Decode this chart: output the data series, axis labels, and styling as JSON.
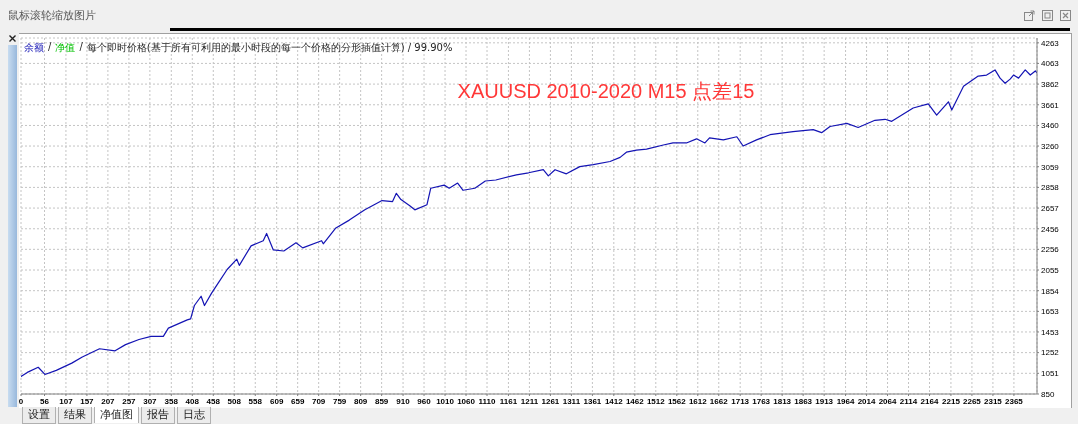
{
  "chart_data": {
    "type": "line",
    "title": "XAUUSD 2010-2020 M15 点差15",
    "annotations": [
      "鼠标滚轮缩放图片",
      "/",
      "每个即时价格(基于所有可利用的最小时段的每一个价格的分形插值计算) / 99.90%",
      "设置",
      "结果",
      "净值图",
      "报告",
      "日志"
    ],
    "x": [
      0,
      15,
      41,
      57,
      84,
      121,
      146,
      187,
      224,
      249,
      281,
      310,
      339,
      351,
      396,
      404,
      413,
      429,
      437,
      454,
      470,
      491,
      514,
      520,
      548,
      577,
      585,
      601,
      626,
      655,
      671,
      716,
      720,
      749,
      782,
      819,
      860,
      885,
      894,
      905,
      926,
      938,
      967,
      976,
      1008,
      1020,
      1040,
      1053,
      1081,
      1106,
      1131,
      1180,
      1209,
      1244,
      1256,
      1272,
      1299,
      1331,
      1363,
      1403,
      1427,
      1442,
      1466,
      1490,
      1530,
      1553,
      1585,
      1609,
      1629,
      1640,
      1673,
      1705,
      1720,
      1752,
      1784,
      1839,
      1887,
      1907,
      1927,
      1967,
      1994,
      2034,
      2058,
      2074,
      2125,
      2161,
      2181,
      2209,
      2217,
      2245,
      2280,
      2300,
      2320,
      2332,
      2344,
      2356,
      2364,
      2376,
      2392,
      2404,
      2416,
      2420
    ],
    "series": [
      {
        "name": "余额",
        "color": "#1414b4",
        "values": [
          1020,
          1060,
          1110,
          1040,
          1080,
          1150,
          1210,
          1290,
          1270,
          1330,
          1380,
          1410,
          1410,
          1490,
          1570,
          1580,
          1710,
          1800,
          1710,
          1830,
          1930,
          2060,
          2160,
          2100,
          2290,
          2340,
          2410,
          2250,
          2240,
          2320,
          2270,
          2340,
          2310,
          2460,
          2540,
          2640,
          2730,
          2720,
          2800,
          2740,
          2680,
          2640,
          2690,
          2850,
          2880,
          2850,
          2900,
          2830,
          2850,
          2920,
          2930,
          2980,
          3000,
          3030,
          2970,
          3030,
          2990,
          3060,
          3080,
          3110,
          3150,
          3200,
          3220,
          3230,
          3270,
          3290,
          3290,
          3330,
          3290,
          3340,
          3320,
          3350,
          3260,
          3320,
          3370,
          3400,
          3420,
          3390,
          3450,
          3480,
          3440,
          3510,
          3520,
          3500,
          3630,
          3670,
          3560,
          3690,
          3610,
          3840,
          3940,
          3950,
          4000,
          3920,
          3870,
          3910,
          3950,
          3920,
          4000,
          3950,
          3990,
          3970
        ]
      },
      {
        "name": "净值",
        "color": "#00c000",
        "values": [
          null,
          null,
          null,
          null,
          null,
          null,
          null,
          null,
          null,
          null,
          null,
          null,
          null,
          null,
          null,
          null,
          null,
          null,
          null,
          null,
          null,
          null,
          null,
          null,
          null,
          null,
          null,
          null,
          null,
          null,
          null,
          null,
          null,
          null,
          null,
          null,
          null,
          null,
          null,
          null,
          null,
          null,
          null,
          null,
          null,
          null,
          null,
          null,
          null,
          null,
          null,
          null,
          null,
          null,
          null,
          null,
          null,
          null,
          null,
          null,
          null,
          null,
          null,
          null,
          null,
          null,
          null,
          null,
          null,
          null,
          null,
          null,
          null,
          null,
          null,
          null,
          null,
          null,
          null,
          null,
          null,
          null,
          null,
          null,
          null,
          null,
          null,
          null,
          null,
          null,
          null,
          null,
          null,
          null,
          null,
          null,
          null,
          null,
          null,
          null,
          null,
          null
        ]
      }
    ],
    "xlim": [
      0,
      2420
    ],
    "ylim": [
      850,
      4310
    ],
    "xticks": [
      0,
      56,
      107,
      157,
      207,
      257,
      307,
      358,
      408,
      458,
      508,
      558,
      609,
      659,
      709,
      759,
      809,
      859,
      910,
      960,
      1010,
      1060,
      1110,
      1161,
      1211,
      1261,
      1311,
      1361,
      1412,
      1462,
      1512,
      1562,
      1612,
      1662,
      1713,
      1763,
      1813,
      1863,
      1913,
      1964,
      2014,
      2064,
      2114,
      2164,
      2215,
      2265,
      2315,
      2365
    ],
    "yticks": [
      850,
      1051,
      1252,
      1453,
      1653,
      1854,
      2055,
      2256,
      2456,
      2657,
      2858,
      3059,
      3260,
      3460,
      3661,
      3862,
      4063,
      4263
    ],
    "grid": true,
    "legend": "top left"
  }
}
